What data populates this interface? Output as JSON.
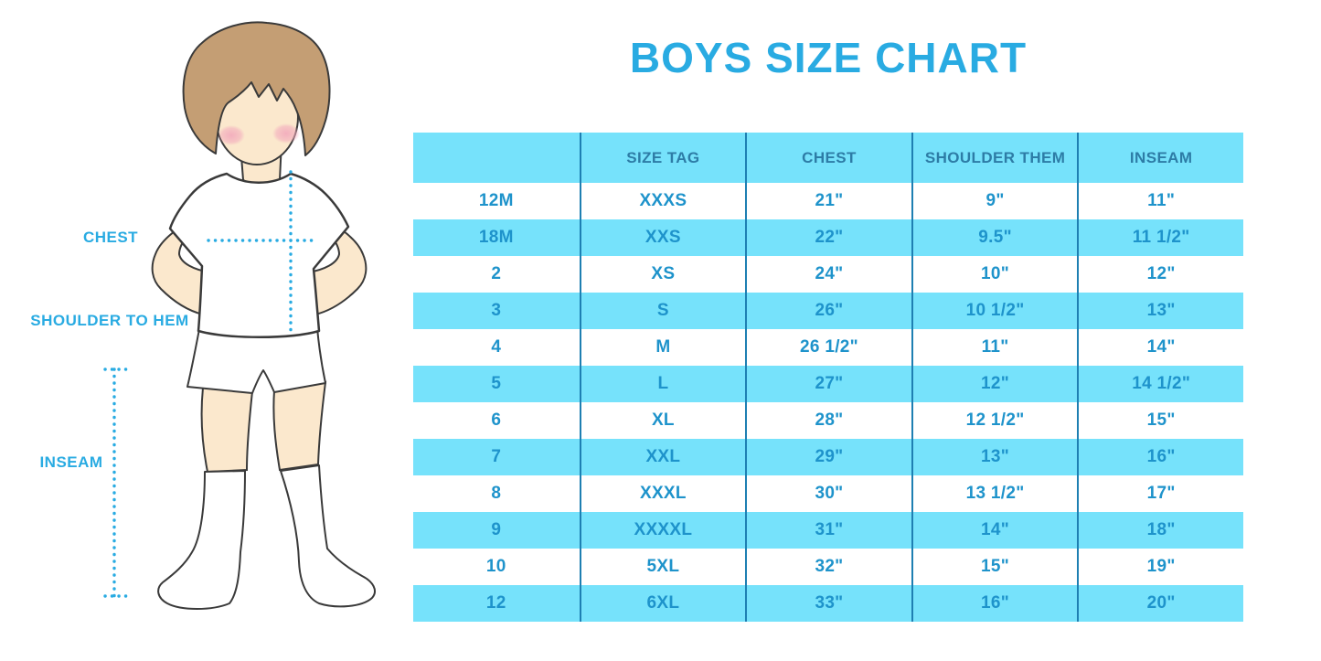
{
  "title": "BOYS SIZE CHART",
  "colors": {
    "accent": "#29ABE2",
    "row_fill": "#76E2FB",
    "divider": "#1E7FB2",
    "header_text": "#2D7CA6",
    "body_text": "#1E93CB",
    "hair": "#C49E74",
    "skin": "#FBE8CD",
    "blush": "#F2A9BC",
    "outline": "#3A3A3A"
  },
  "diagram": {
    "labels": {
      "chest": "CHEST",
      "shoulder_to_hem": "SHOULDER TO HEM",
      "inseam": "INSEAM"
    }
  },
  "chart_data": {
    "type": "table",
    "title": "BOYS SIZE CHART",
    "columns": [
      "",
      "SIZE TAG",
      "CHEST",
      "SHOULDER THEM",
      "INSEAM"
    ],
    "rows": [
      [
        "12M",
        "XXXS",
        "21\"",
        "9\"",
        "11\""
      ],
      [
        "18M",
        "XXS",
        "22\"",
        "9.5\"",
        "11 1/2\""
      ],
      [
        "2",
        "XS",
        "24\"",
        "10\"",
        "12\""
      ],
      [
        "3",
        "S",
        "26\"",
        "10 1/2\"",
        "13\""
      ],
      [
        "4",
        "M",
        "26 1/2\"",
        "11\"",
        "14\""
      ],
      [
        "5",
        "L",
        "27\"",
        "12\"",
        "14 1/2\""
      ],
      [
        "6",
        "XL",
        "28\"",
        "12 1/2\"",
        "15\""
      ],
      [
        "7",
        "XXL",
        "29\"",
        "13\"",
        "16\""
      ],
      [
        "8",
        "XXXL",
        "30\"",
        "13 1/2\"",
        "17\""
      ],
      [
        "9",
        "XXXXL",
        "31\"",
        "14\"",
        "18\""
      ],
      [
        "10",
        "5XL",
        "32\"",
        "15\"",
        "19\""
      ],
      [
        "12",
        "6XL",
        "33\"",
        "16\"",
        "20\""
      ]
    ]
  }
}
